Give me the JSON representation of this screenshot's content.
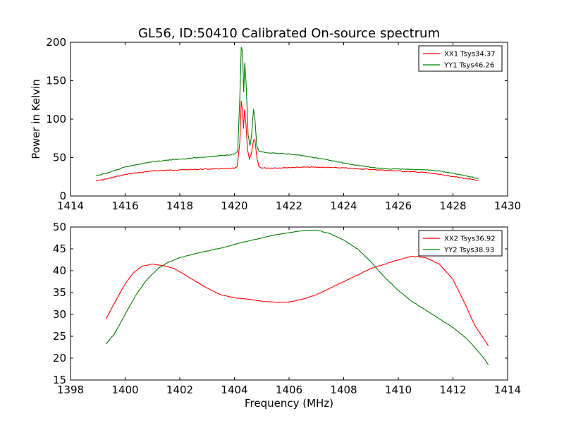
{
  "figure": {
    "title": "GL56, ID:50410 Calibrated On-source spectrum"
  },
  "colors": {
    "series1": "#ff0000",
    "series2": "#008000",
    "axes": "#000000",
    "background": "#ffffff"
  },
  "chart_data": [
    {
      "type": "line",
      "title": "GL56, ID:50410 Calibrated On-source spectrum",
      "xlabel": "",
      "ylabel": "Power in Kelvin",
      "xlim": [
        1414,
        1430
      ],
      "ylim": [
        0,
        200
      ],
      "xticks": [
        1414,
        1416,
        1418,
        1420,
        1422,
        1424,
        1426,
        1428,
        1430
      ],
      "yticks": [
        0,
        50,
        100,
        150,
        200
      ],
      "grid": false,
      "legend_position": "top-right",
      "series": [
        {
          "name": "XX1 Tsys34.37",
          "color": "#ff0000",
          "points": [
            [
              1414.93,
              19.5
            ],
            [
              1415.3,
              22
            ],
            [
              1415.7,
              25.5
            ],
            [
              1416.0,
              28.0
            ],
            [
              1416.5,
              30.5
            ],
            [
              1417.0,
              32.5
            ],
            [
              1417.5,
              33.5
            ],
            [
              1418.0,
              34.0
            ],
            [
              1418.5,
              34.5
            ],
            [
              1419.0,
              35.0
            ],
            [
              1419.5,
              35.5
            ],
            [
              1420.0,
              36.0
            ],
            [
              1420.1,
              38.0
            ],
            [
              1420.2,
              70.0
            ],
            [
              1420.25,
              124.0
            ],
            [
              1420.3,
              110.0
            ],
            [
              1420.33,
              88.0
            ],
            [
              1420.37,
              112.0
            ],
            [
              1420.42,
              95.0
            ],
            [
              1420.48,
              60.0
            ],
            [
              1420.55,
              48.0
            ],
            [
              1420.62,
              55.0
            ],
            [
              1420.7,
              72.0
            ],
            [
              1420.75,
              73.0
            ],
            [
              1420.82,
              50.0
            ],
            [
              1420.9,
              38.0
            ],
            [
              1421.0,
              36.5
            ],
            [
              1421.5,
              36.5
            ],
            [
              1422.0,
              37.0
            ],
            [
              1422.5,
              37.5
            ],
            [
              1423.0,
              37.5
            ],
            [
              1423.5,
              37.0
            ],
            [
              1424.0,
              36.5
            ],
            [
              1424.5,
              35.5
            ],
            [
              1425.0,
              34.5
            ],
            [
              1425.5,
              33.5
            ],
            [
              1426.0,
              32.5
            ],
            [
              1426.5,
              31.5
            ],
            [
              1427.0,
              30.5
            ],
            [
              1427.5,
              28.0
            ],
            [
              1428.0,
              25.5
            ],
            [
              1428.5,
              22.5
            ],
            [
              1428.93,
              20.0
            ]
          ]
        },
        {
          "name": "YY1 Tsys46.26",
          "color": "#008000",
          "points": [
            [
              1414.93,
              26.0
            ],
            [
              1415.3,
              29.5
            ],
            [
              1415.7,
              34.0
            ],
            [
              1416.0,
              37.5
            ],
            [
              1416.5,
              41.5
            ],
            [
              1417.0,
              44.5
            ],
            [
              1417.5,
              46.5
            ],
            [
              1418.0,
              48.0
            ],
            [
              1418.5,
              49.5
            ],
            [
              1419.0,
              51.0
            ],
            [
              1419.5,
              52.5
            ],
            [
              1420.0,
              54.5
            ],
            [
              1420.12,
              58.0
            ],
            [
              1420.2,
              130.0
            ],
            [
              1420.25,
              193.0
            ],
            [
              1420.3,
              188.0
            ],
            [
              1420.34,
              135.0
            ],
            [
              1420.38,
              173.0
            ],
            [
              1420.43,
              145.0
            ],
            [
              1420.5,
              80.0
            ],
            [
              1420.57,
              65.0
            ],
            [
              1420.63,
              80.0
            ],
            [
              1420.7,
              113.0
            ],
            [
              1420.75,
              100.0
            ],
            [
              1420.82,
              65.0
            ],
            [
              1420.9,
              58.0
            ],
            [
              1421.0,
              57.0
            ],
            [
              1421.5,
              55.5
            ],
            [
              1422.0,
              54.5
            ],
            [
              1422.5,
              52.5
            ],
            [
              1423.0,
              49.5
            ],
            [
              1423.5,
              46.5
            ],
            [
              1424.0,
              43.0
            ],
            [
              1424.5,
              40.0
            ],
            [
              1425.0,
              37.5
            ],
            [
              1425.5,
              35.5
            ],
            [
              1426.0,
              35.0
            ],
            [
              1426.5,
              34.5
            ],
            [
              1427.0,
              34.0
            ],
            [
              1427.5,
              32.5
            ],
            [
              1428.0,
              29.5
            ],
            [
              1428.5,
              26.0
            ],
            [
              1428.93,
              22.5
            ]
          ]
        }
      ]
    },
    {
      "type": "line",
      "title": "",
      "xlabel": "Frequency (MHz)",
      "ylabel": "",
      "xlim": [
        1398,
        1414
      ],
      "ylim": [
        15,
        50
      ],
      "xticks": [
        1398,
        1400,
        1402,
        1404,
        1406,
        1408,
        1410,
        1412,
        1414
      ],
      "yticks": [
        15,
        20,
        25,
        30,
        35,
        40,
        45,
        50
      ],
      "grid": false,
      "legend_position": "top-right",
      "series": [
        {
          "name": "XX2 Tsys36.92",
          "color": "#ff0000",
          "points": [
            [
              1399.3,
              29.0
            ],
            [
              1399.6,
              32.5
            ],
            [
              1400.0,
              37.0
            ],
            [
              1400.3,
              39.5
            ],
            [
              1400.6,
              41.0
            ],
            [
              1401.0,
              41.5
            ],
            [
              1401.4,
              41.2
            ],
            [
              1401.8,
              40.5
            ],
            [
              1402.2,
              39.0
            ],
            [
              1402.6,
              37.5
            ],
            [
              1403.0,
              36.0
            ],
            [
              1403.5,
              34.5
            ],
            [
              1404.0,
              33.8
            ],
            [
              1404.5,
              33.5
            ],
            [
              1405.0,
              33.0
            ],
            [
              1405.5,
              32.8
            ],
            [
              1406.0,
              32.8
            ],
            [
              1406.5,
              33.5
            ],
            [
              1407.0,
              34.5
            ],
            [
              1407.5,
              36.0
            ],
            [
              1408.0,
              37.5
            ],
            [
              1408.5,
              39.0
            ],
            [
              1409.0,
              40.5
            ],
            [
              1409.5,
              41.5
            ],
            [
              1410.0,
              42.5
            ],
            [
              1410.5,
              43.3
            ],
            [
              1411.0,
              43.0
            ],
            [
              1411.5,
              41.5
            ],
            [
              1412.0,
              38.0
            ],
            [
              1412.4,
              33.0
            ],
            [
              1412.8,
              27.5
            ],
            [
              1413.3,
              22.8
            ]
          ]
        },
        {
          "name": "YY2 Tsys38.93",
          "color": "#008000",
          "points": [
            [
              1399.3,
              23.2
            ],
            [
              1399.6,
              25.5
            ],
            [
              1400.0,
              30.0
            ],
            [
              1400.4,
              34.5
            ],
            [
              1400.8,
              38.0
            ],
            [
              1401.2,
              40.5
            ],
            [
              1401.6,
              42.0
            ],
            [
              1402.0,
              43.0
            ],
            [
              1402.5,
              43.8
            ],
            [
              1403.0,
              44.5
            ],
            [
              1403.5,
              45.2
            ],
            [
              1404.0,
              46.0
            ],
            [
              1404.5,
              46.8
            ],
            [
              1405.0,
              47.5
            ],
            [
              1405.5,
              48.2
            ],
            [
              1406.0,
              48.7
            ],
            [
              1406.5,
              49.2
            ],
            [
              1407.0,
              49.3
            ],
            [
              1407.5,
              48.5
            ],
            [
              1408.0,
              47.0
            ],
            [
              1408.5,
              45.0
            ],
            [
              1409.0,
              42.0
            ],
            [
              1409.5,
              38.5
            ],
            [
              1410.0,
              35.5
            ],
            [
              1410.5,
              33.0
            ],
            [
              1411.0,
              31.0
            ],
            [
              1411.5,
              29.0
            ],
            [
              1412.0,
              27.0
            ],
            [
              1412.5,
              24.5
            ],
            [
              1413.0,
              21.0
            ],
            [
              1413.3,
              18.5
            ]
          ]
        }
      ]
    }
  ]
}
